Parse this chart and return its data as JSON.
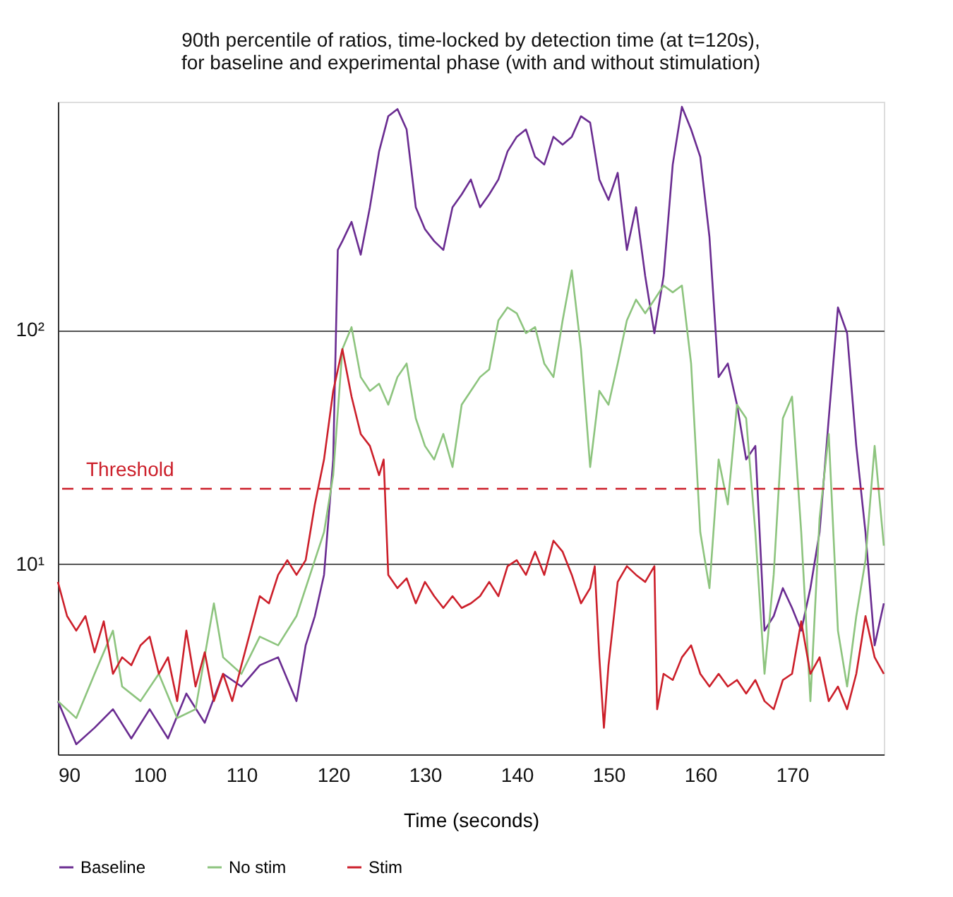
{
  "chart_data": {
    "type": "line",
    "title": "90th percentile of ratios, time-locked by detection time (at t=120s),\nfor baseline and experimental phase (with and without stimulation)",
    "xlabel": "Time (seconds)",
    "xlim": [
      90,
      180
    ],
    "xticks": [
      90,
      100,
      110,
      120,
      130,
      140,
      150,
      160,
      170
    ],
    "ylim": [
      1.54,
      946
    ],
    "yticks": [
      {
        "value": 10,
        "label": "10¹"
      },
      {
        "value": 100,
        "label": "10²"
      }
    ],
    "log": true,
    "grid": "y",
    "legend": "bottom",
    "marker": "none",
    "line_style": "solid",
    "ref_lines": [
      {
        "axis": "y",
        "value": 21,
        "label": "Threshold",
        "color": "#cc1f2a",
        "line_style": "dashed"
      }
    ],
    "series": [
      {
        "name": "Baseline",
        "color": "#6a2c91",
        "x": [
          90,
          91,
          92,
          94,
          96,
          98,
          100,
          102,
          104,
          106,
          108,
          110,
          112,
          114,
          116,
          117,
          118,
          119,
          120,
          120.5,
          121,
          122,
          123,
          124,
          125,
          126,
          127,
          128,
          129,
          130,
          131,
          132,
          133,
          134,
          135,
          136,
          137,
          138,
          139,
          140,
          141,
          142,
          143,
          144,
          145,
          146,
          147,
          148,
          149,
          150,
          151,
          152,
          153,
          154,
          155,
          156,
          157,
          158,
          159,
          160,
          161,
          162,
          163,
          164,
          165,
          166,
          167,
          168,
          169,
          170,
          171,
          172,
          173,
          174,
          175,
          176,
          177,
          178,
          179,
          180
        ],
        "values": [
          2.6,
          2.1,
          1.7,
          2,
          2.4,
          1.8,
          2.4,
          1.8,
          2.8,
          2.1,
          3.4,
          3,
          3.7,
          4,
          2.6,
          4.5,
          6,
          9,
          28,
          220,
          240,
          290,
          210,
          335,
          580,
          820,
          880,
          720,
          335,
          270,
          240,
          220,
          335,
          380,
          440,
          335,
          380,
          440,
          580,
          670,
          720,
          550,
          510,
          670,
          620,
          670,
          820,
          770,
          440,
          360,
          470,
          220,
          335,
          170,
          97,
          170,
          510,
          900,
          720,
          550,
          250,
          63,
          72,
          48,
          28,
          32,
          5.2,
          6,
          7.9,
          6.5,
          5.2,
          7.9,
          13.7,
          42,
          125,
          97,
          32,
          13.7,
          4.5,
          6.8
        ]
      },
      {
        "name": "No stim",
        "color": "#8dc47e",
        "x": [
          90,
          92,
          94,
          96,
          97,
          99,
          101,
          103,
          105,
          107,
          108,
          110,
          112,
          114,
          116,
          118,
          119,
          120,
          121,
          122,
          123,
          124,
          125,
          126,
          127,
          128,
          129,
          130,
          131,
          132,
          133,
          134,
          135,
          136,
          137,
          138,
          139,
          140,
          141,
          142,
          143,
          144,
          145,
          146,
          147,
          148,
          149,
          150,
          151,
          152,
          153,
          154,
          155,
          156,
          157,
          158,
          159,
          160,
          161,
          162,
          163,
          164,
          165,
          166,
          167,
          168,
          169,
          170,
          171,
          172,
          173,
          174,
          175,
          176,
          177,
          178,
          179,
          180
        ],
        "values": [
          2.6,
          2.2,
          3.4,
          5.2,
          3,
          2.6,
          3.4,
          2.2,
          2.4,
          6.8,
          4,
          3.4,
          4.9,
          4.5,
          6,
          10.4,
          13.7,
          24,
          83,
          103,
          63,
          55,
          59,
          48,
          63,
          72,
          42,
          32,
          28,
          36,
          26,
          48,
          55,
          63,
          68,
          110,
          125,
          118,
          97,
          103,
          72,
          63,
          110,
          180,
          83,
          26,
          55,
          48,
          72,
          110,
          135,
          118,
          135,
          155,
          145,
          155,
          72,
          13.7,
          7.9,
          28,
          18,
          48,
          42,
          13.7,
          3.4,
          9,
          42,
          52,
          13.7,
          2.6,
          15.7,
          36,
          5.2,
          3,
          6,
          10.4,
          32,
          12
        ]
      },
      {
        "name": "Stim",
        "color": "#cc1f2a",
        "x": [
          90,
          91,
          92,
          93,
          94,
          95,
          96,
          97,
          98,
          99,
          100,
          101,
          102,
          103,
          104,
          105,
          106,
          107,
          108,
          109,
          110,
          111,
          112,
          113,
          114,
          115,
          116,
          117,
          118,
          119,
          120,
          121,
          122,
          123,
          124,
          125,
          125.5,
          126,
          127,
          128,
          129,
          130,
          131,
          132,
          133,
          134,
          135,
          136,
          137,
          138,
          139,
          140,
          141,
          142,
          143,
          144,
          145,
          146,
          147,
          148,
          148.5,
          149,
          149.5,
          150,
          151,
          152,
          153,
          154,
          155,
          155.3,
          156,
          157,
          158,
          159,
          160,
          161,
          162,
          163,
          164,
          165,
          166,
          167,
          168,
          169,
          170,
          171,
          172,
          173,
          174,
          175,
          176,
          177,
          178,
          179,
          180
        ],
        "values": [
          8.4,
          6,
          5.2,
          6,
          4.2,
          5.7,
          3.4,
          4,
          3.7,
          4.5,
          4.9,
          3.4,
          4,
          2.6,
          5.2,
          3,
          4.2,
          2.6,
          3.4,
          2.6,
          3.7,
          5.2,
          7.3,
          6.8,
          9,
          10.4,
          9,
          10.4,
          18,
          28,
          55,
          83,
          52,
          36,
          32,
          24,
          28,
          9,
          7.9,
          8.7,
          6.8,
          8.4,
          7.3,
          6.5,
          7.3,
          6.5,
          6.8,
          7.3,
          8.4,
          7.3,
          9.8,
          10.4,
          9,
          11.3,
          9,
          12.6,
          11.3,
          9,
          6.8,
          7.9,
          9.8,
          4,
          2,
          3.7,
          8.4,
          9.8,
          9,
          8.4,
          9.8,
          2.4,
          3.4,
          3.2,
          4,
          4.5,
          3.4,
          3,
          3.4,
          3,
          3.2,
          2.8,
          3.2,
          2.6,
          2.4,
          3.2,
          3.4,
          5.7,
          3.4,
          4,
          2.6,
          3,
          2.4,
          3.4,
          6,
          4,
          3.4
        ]
      }
    ]
  }
}
